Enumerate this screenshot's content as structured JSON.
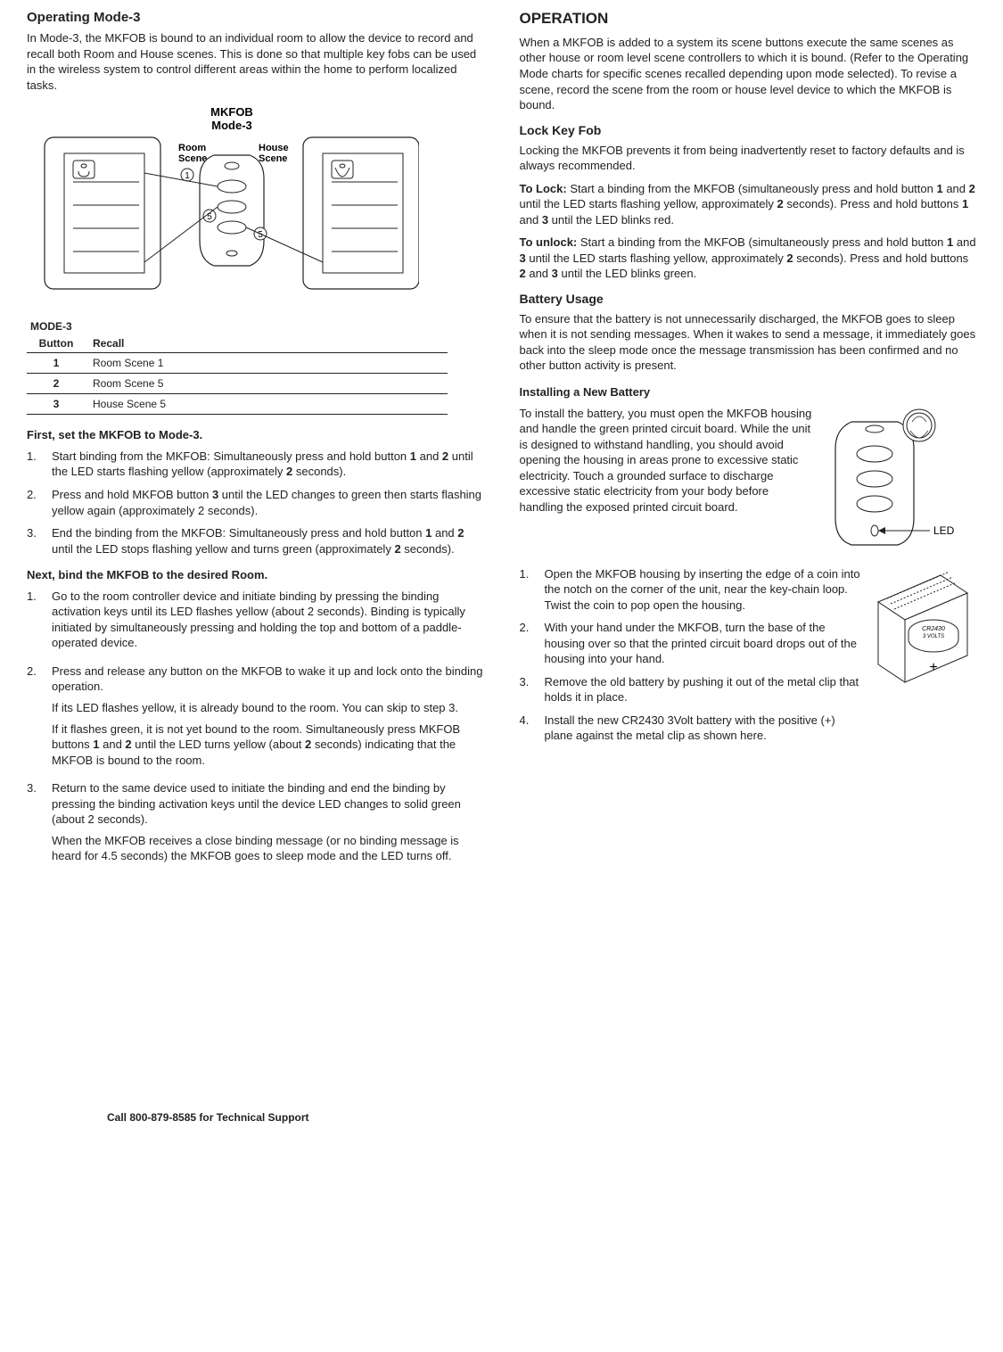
{
  "left": {
    "mode3_heading": "Operating Mode-3",
    "mode3_intro": "In Mode-3, the MKFOB is bound to an individual room to allow the device to record and recall both Room and House scenes. This is done so that multiple key fobs can be used in the wireless system to control different areas within the home to perform localized tasks.",
    "fig": {
      "title_l1": "MKFOB",
      "title_l2": "Mode-3",
      "room_l1": "Room",
      "room_l2": "Scene",
      "house_l1": "House",
      "house_l2": "Scene",
      "n1": "1",
      "n5a": "5",
      "n5b": "5"
    },
    "table_caption": "MODE-3",
    "table_h1": "Button",
    "table_h2": "Recall",
    "rows": [
      {
        "b": "1",
        "r": "Room Scene 1"
      },
      {
        "b": "2",
        "r": "Room Scene 5"
      },
      {
        "b": "3",
        "r": "House Scene 5"
      }
    ],
    "set_head": "First, set the MKFOB to Mode-3.",
    "set_steps": {
      "s1n": "1.",
      "s1": "Start binding from the MKFOB: Simultaneously press and hold button 1 and 2 until the LED starts flashing yellow (approximately 2 seconds).",
      "s2n": "2.",
      "s2": "Press and hold MKFOB button 3 until the LED changes to green then starts flashing yellow again (approximately 2 seconds).",
      "s3n": "3.",
      "s3": "End the binding from the MKFOB: Simultaneously press and hold button 1 and 2 until the LED stops flashing yellow and turns green (approximately 2 seconds)."
    },
    "bind_head": "Next, bind the MKFOB to the desired Room.",
    "bind_steps": {
      "s1n": "1.",
      "s1": "Go to the room controller device and initiate binding by pressing the binding activation keys until its LED flashes yellow (about 2 seconds). Binding is typically initiated by simultaneously pressing and holding the top and bottom of a paddle-operated device.",
      "s2n": "2.",
      "s2a": "Press and release any button on the MKFOB to wake it up and lock onto the binding operation.",
      "s2b": "If its LED flashes yellow, it is already bound to the room. You can skip to step 3.",
      "s2c": "If it flashes green, it is not yet bound to the room. Simultaneously press MKFOB buttons 1 and 2 until the LED turns yellow (about 2 seconds) indicating that the MKFOB is bound to the room.",
      "s3n": "3.",
      "s3a": "Return to the same device used to initiate the binding and end the binding by pressing the binding activation keys until the device LED changes to solid green (about 2 seconds).",
      "s3b": "When the MKFOB receives a close binding message (or no binding message is heard for 4.5 seconds) the MKFOB goes to sleep mode and the LED turns off."
    }
  },
  "right": {
    "op_heading": "OPERATION",
    "op_intro": "When a MKFOB is added to a system its scene buttons execute the same scenes as other house or room level scene controllers to which it is bound. (Refer to the Operating Mode charts for specific scenes recalled depending upon mode selected). To revise a scene, record the scene from the room or house level device to which the MKFOB is bound.",
    "lock_heading": "Lock Key Fob",
    "lock_p1": "Locking the MKFOB prevents it from being inadvertently reset to factory defaults and is always recommended.",
    "lock_p2_label": "To Lock:",
    "lock_p2": "  Start a binding from the MKFOB (simultaneously press and hold button 1 and 2 until the LED starts flashing yellow, approximately 2 seconds). Press and hold buttons 1 and 3 until the LED blinks red.",
    "lock_p3_label": "To unlock:",
    "lock_p3": " Start a binding from the MKFOB (simultaneously press and hold button 1 and 3 until the LED starts flashing yellow, approximately 2 seconds). Press and hold buttons 2 and 3 until the LED blinks green.",
    "batt_heading": "Battery Usage",
    "batt_p1": "To ensure that the battery is not unnecessarily discharged, the MKFOB goes to sleep when it is not sending messages. When it wakes to send a message, it immediately goes back into the sleep mode once the message transmission has been confirmed and no other button activity is present.",
    "install_heading": "Installing a New Battery",
    "install_p1": "To install the battery, you must open the MKFOB housing and handle the green printed circuit board. While the unit is designed to withstand handling, you should avoid opening the housing in areas prone to excessive static electricity. Touch a grounded surface to discharge excessive static electricity from your body before handling the exposed printed circuit board.",
    "led_label": "LED",
    "install_steps": {
      "s1n": "1.",
      "s1": "Open the MKFOB housing by inserting the edge of a coin into the notch on the corner of the unit, near the key-chain loop. Twist the coin to pop open the housing.",
      "s2n": "2.",
      "s2": "With your hand under the MKFOB, turn the base of the housing over so that the printed circuit board drops out of the housing into your hand.",
      "s3n": "3.",
      "s3": "Remove the old battery by pushing it out of the metal clip that holds it in place.",
      "s4n": "4.",
      "s4": "Install the new CR2430 3Volt battery with the positive (+) plane against the metal clip as shown here."
    },
    "pcb_label1": "CR2430",
    "pcb_label2": "3 VOLTS"
  },
  "footer": "Call 800-879-8585 for Technical Support"
}
